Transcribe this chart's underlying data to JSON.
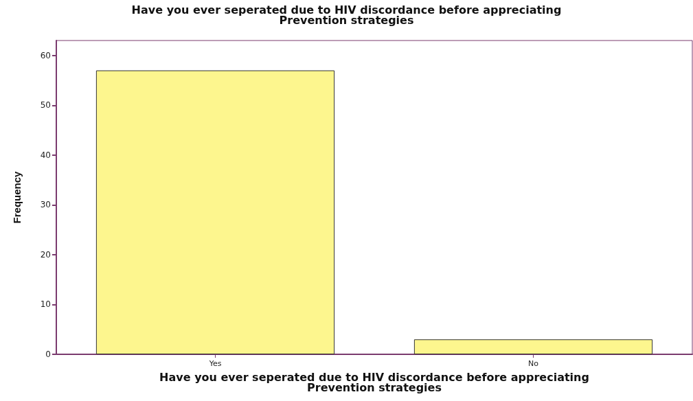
{
  "chart_data": {
    "type": "bar",
    "title": "Have you ever seperated due to HIV discordance before appreciating\nPrevention strategies",
    "xlabel": "Have you ever seperated due to HIV discordance before appreciating\nPrevention strategies",
    "ylabel": "Frequency",
    "categories": [
      "Yes",
      "No"
    ],
    "values": [
      57,
      3
    ],
    "color": "#fdf68e",
    "ylim": [
      0,
      63
    ],
    "yticks": [
      0,
      10,
      20,
      30,
      40,
      50,
      60
    ],
    "grid": false
  }
}
